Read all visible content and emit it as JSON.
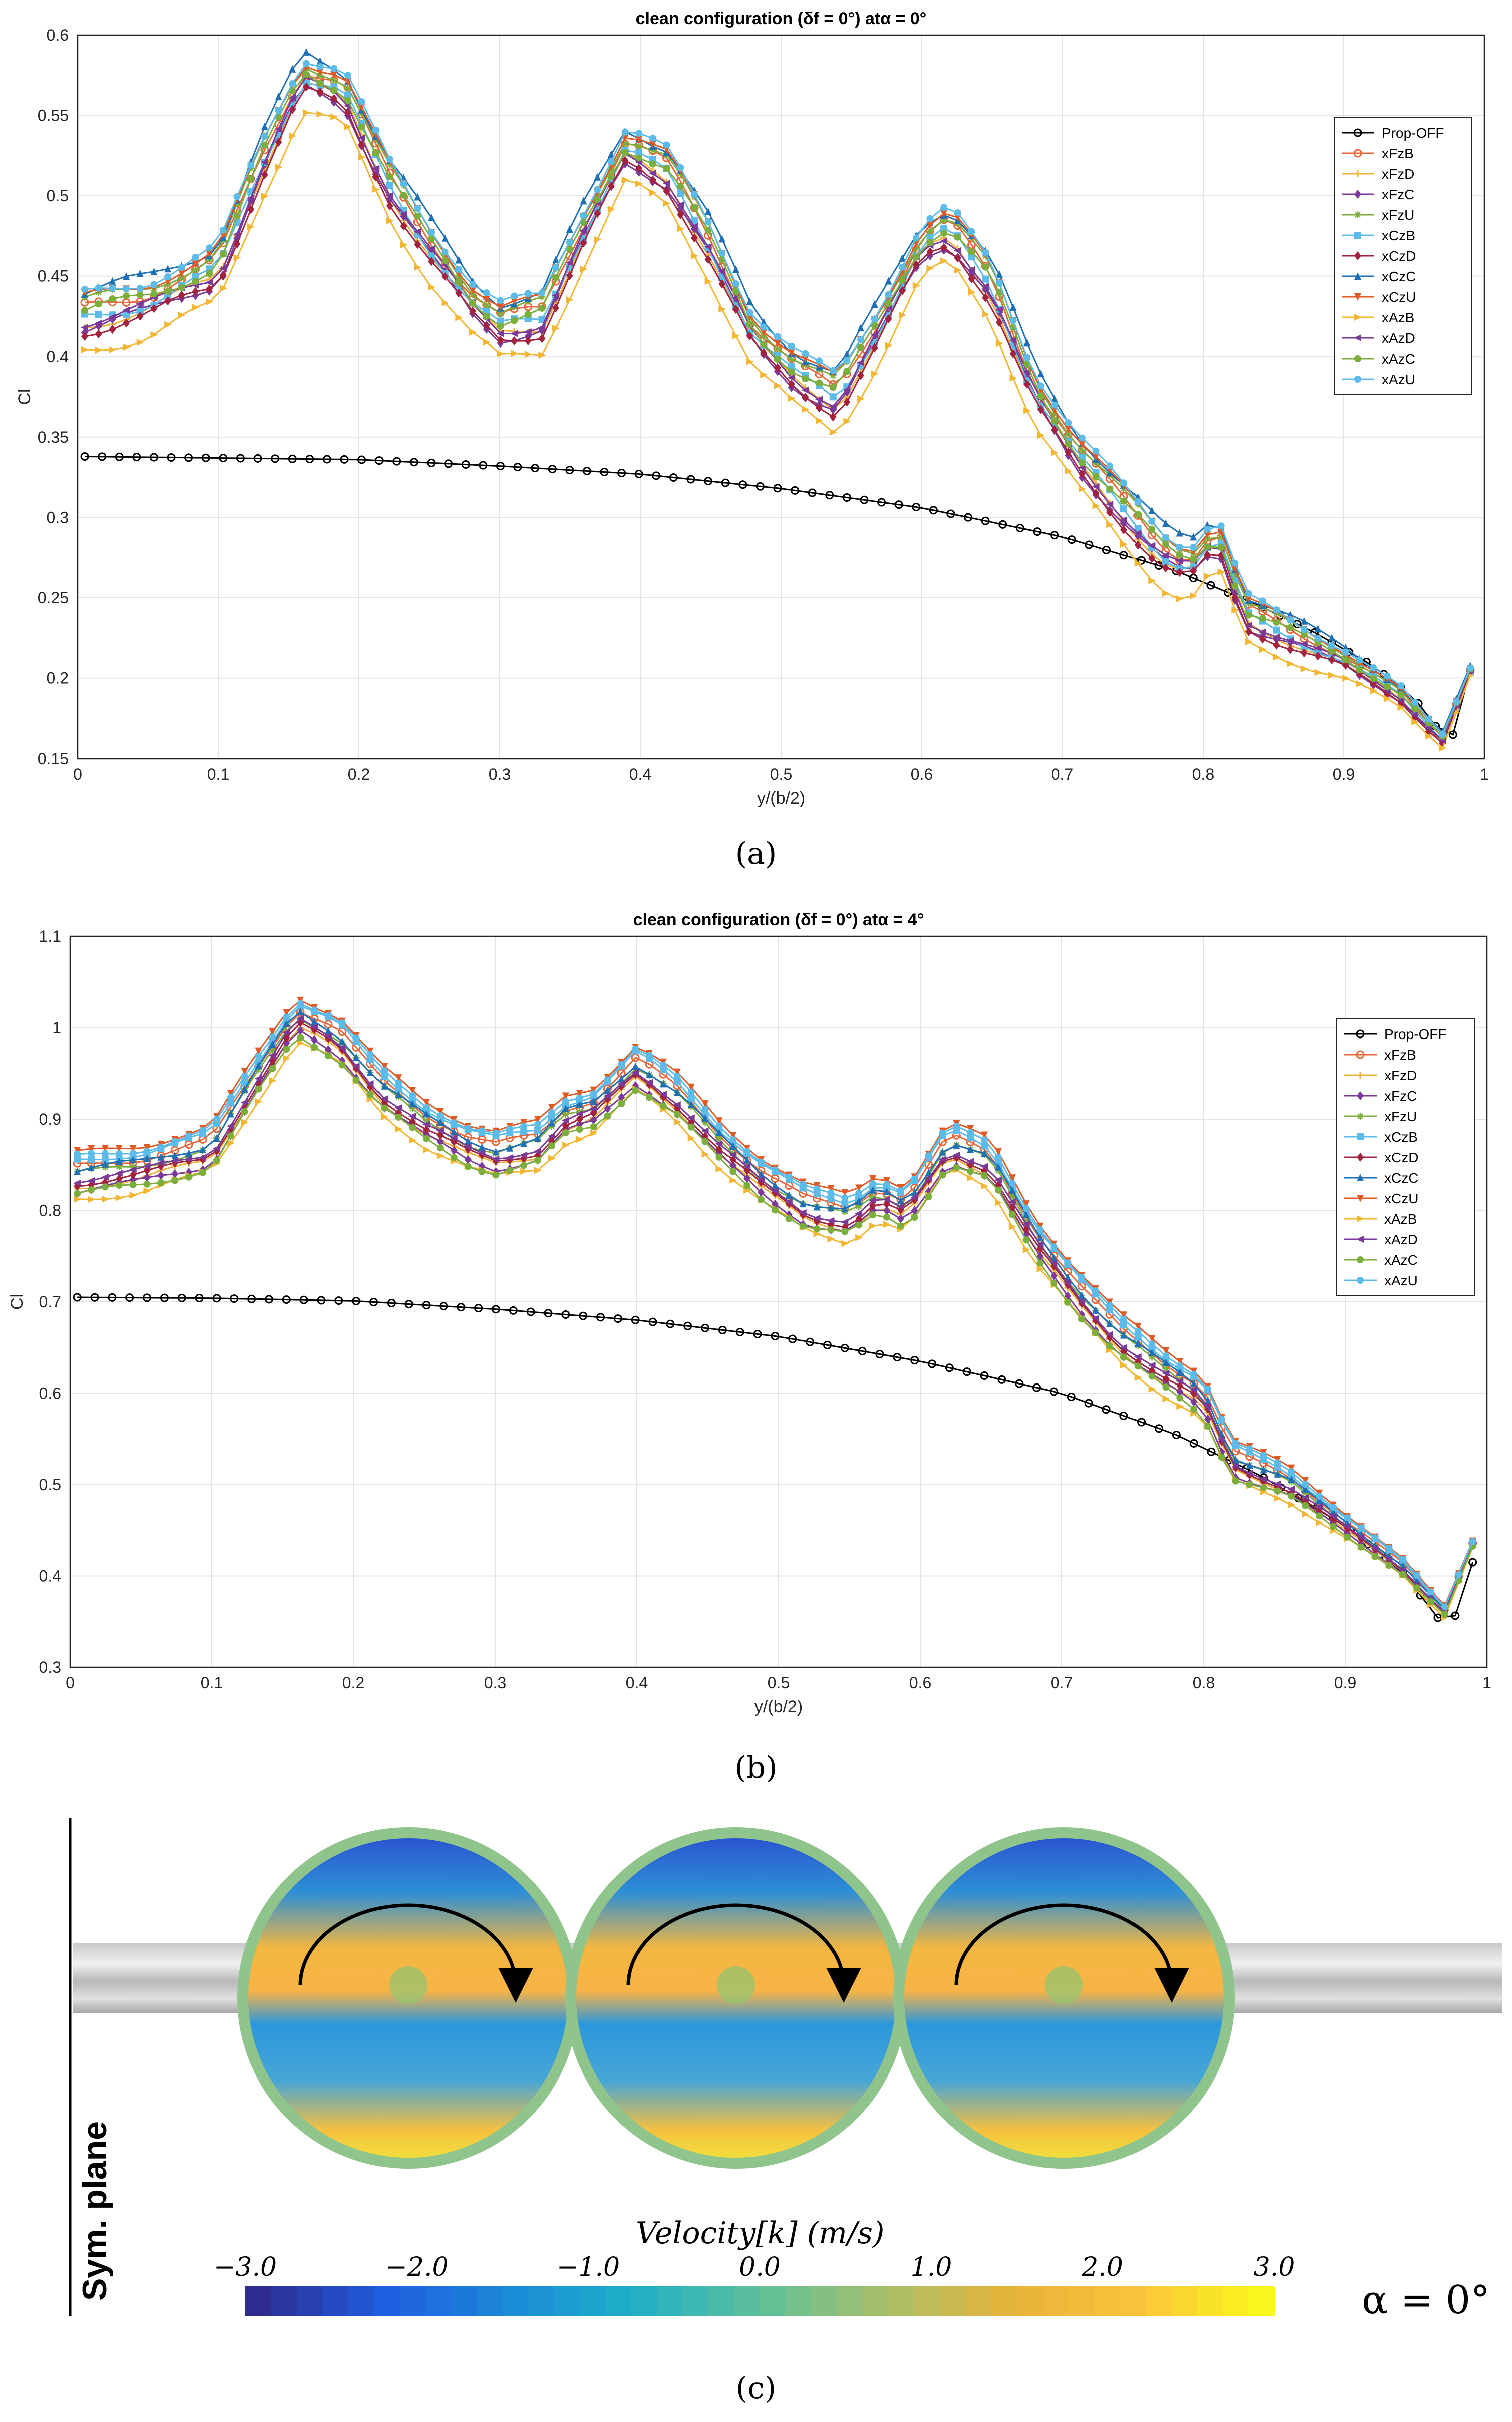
{
  "panels": {
    "a": {
      "caption": "(a)"
    },
    "b": {
      "caption": "(b)"
    },
    "c": {
      "caption": "(c)",
      "colorbar_title": "Velocity[k] (m/s)",
      "colorbar_ticks": [
        "−3.0",
        "−2.0",
        "−1.0",
        "0.0",
        "1.0",
        "2.0",
        "3.0"
      ],
      "sym_plane_label": "Sym. plane",
      "alpha_label": "α = 0°",
      "colorbar_colors": [
        "#2e2d8f",
        "#1f5ce0",
        "#1b8ad8",
        "#1fb0c8",
        "#5fc09a",
        "#a8bf6a",
        "#e6b33a",
        "#fbc23b",
        "#f9f81c"
      ]
    }
  },
  "chart_data": [
    {
      "type": "line",
      "title": "clean configuration (δf = 0°) atα = 0°",
      "xlabel": "y/(b/2)",
      "ylabel": "Cl",
      "xlim": [
        0,
        1
      ],
      "ylim": [
        0.15,
        0.6
      ],
      "xticks": [
        "0",
        "0.1",
        "0.2",
        "0.3",
        "0.4",
        "0.5",
        "0.6",
        "0.7",
        "0.8",
        "0.9",
        "1"
      ],
      "yticks": [
        "0.15",
        "0.2",
        "0.25",
        "0.3",
        "0.35",
        "0.4",
        "0.45",
        "0.5",
        "0.55",
        "0.6"
      ],
      "legend_position": "top-right",
      "grid": true,
      "baseline": {
        "name": "Prop-OFF",
        "x": [
          0.0,
          0.1,
          0.2,
          0.3,
          0.4,
          0.5,
          0.6,
          0.7,
          0.78,
          0.84,
          0.88,
          0.92,
          0.95,
          0.97,
          0.98,
          0.99
        ],
        "y": [
          0.338,
          0.337,
          0.336,
          0.332,
          0.327,
          0.318,
          0.306,
          0.288,
          0.267,
          0.245,
          0.228,
          0.208,
          0.188,
          0.165,
          0.165,
          0.205
        ]
      },
      "prop_x": [
        0.0,
        0.05,
        0.1,
        0.13,
        0.16,
        0.19,
        0.22,
        0.25,
        0.28,
        0.3,
        0.33,
        0.36,
        0.39,
        0.42,
        0.45,
        0.48,
        0.51,
        0.54,
        0.57,
        0.6,
        0.62,
        0.65,
        0.68,
        0.71,
        0.74,
        0.77,
        0.79,
        0.81,
        0.83,
        0.86,
        0.9,
        0.94,
        0.97,
        0.99
      ],
      "prop_base": [
        0.425,
        0.435,
        0.455,
        0.52,
        0.575,
        0.565,
        0.51,
        0.47,
        0.435,
        0.42,
        0.425,
        0.48,
        0.53,
        0.515,
        0.47,
        0.415,
        0.39,
        0.375,
        0.42,
        0.47,
        0.48,
        0.445,
        0.38,
        0.34,
        0.31,
        0.28,
        0.27,
        0.29,
        0.24,
        0.228,
        0.212,
        0.19,
        0.162,
        0.205
      ],
      "series": [
        {
          "name": "Prop-OFF",
          "color": "#000000",
          "marker": "o",
          "offset": 0
        },
        {
          "name": "xFzB",
          "color": "#e8673a",
          "marker": "o",
          "offset": 0.004
        },
        {
          "name": "xFzD",
          "color": "#f0b13a",
          "marker": "+",
          "offset": -0.006
        },
        {
          "name": "xFzC",
          "color": "#7b3a98",
          "marker": "d",
          "offset": -0.008
        },
        {
          "name": "xFzU",
          "color": "#7cae3e",
          "marker": "*",
          "offset": 0.008
        },
        {
          "name": "xCzB",
          "color": "#5cbbe8",
          "marker": "s",
          "offset": -0.002
        },
        {
          "name": "xCzD",
          "color": "#a3233f",
          "marker": "d",
          "offset": -0.01
        },
        {
          "name": "xCzC",
          "color": "#1f6fb5",
          "marker": "^",
          "offset": 0.014
        },
        {
          "name": "xCzU",
          "color": "#e05a25",
          "marker": "v",
          "offset": 0.01
        },
        {
          "name": "xAzB",
          "color": "#f2b632",
          "marker": ">",
          "offset": -0.022
        },
        {
          "name": "xAzD",
          "color": "#7b3a98",
          "marker": "<",
          "offset": -0.004
        },
        {
          "name": "xAzC",
          "color": "#7cae3e",
          "marker": "p",
          "offset": 0.002
        },
        {
          "name": "xAzU",
          "color": "#5cbbe8",
          "marker": "h",
          "offset": 0.012
        }
      ]
    },
    {
      "type": "line",
      "title": "clean configuration (δf = 0°) atα = 4°",
      "xlabel": "y/(b/2)",
      "ylabel": "Cl",
      "xlim": [
        0,
        1
      ],
      "ylim": [
        0.3,
        1.1
      ],
      "xticks": [
        "0",
        "0.1",
        "0.2",
        "0.3",
        "0.4",
        "0.5",
        "0.6",
        "0.7",
        "0.8",
        "0.9",
        "1"
      ],
      "yticks": [
        "0.3",
        "0.4",
        "0.5",
        "0.6",
        "0.7",
        "0.8",
        "0.9",
        "1",
        "1.1"
      ],
      "legend_position": "top-right",
      "grid": true,
      "baseline": {
        "name": "Prop-OFF",
        "x": [
          0.0,
          0.1,
          0.2,
          0.3,
          0.4,
          0.5,
          0.6,
          0.7,
          0.78,
          0.84,
          0.9,
          0.94,
          0.97,
          0.98,
          0.99
        ],
        "y": [
          0.705,
          0.704,
          0.701,
          0.692,
          0.68,
          0.662,
          0.635,
          0.6,
          0.555,
          0.51,
          0.455,
          0.405,
          0.345,
          0.36,
          0.415
        ]
      },
      "prop_x": [
        0.0,
        0.05,
        0.1,
        0.13,
        0.16,
        0.19,
        0.22,
        0.25,
        0.28,
        0.3,
        0.33,
        0.35,
        0.37,
        0.4,
        0.43,
        0.46,
        0.49,
        0.52,
        0.55,
        0.57,
        0.59,
        0.62,
        0.65,
        0.68,
        0.71,
        0.74,
        0.77,
        0.8,
        0.82,
        0.86,
        0.9,
        0.94,
        0.97,
        0.99
      ],
      "prop_base": [
        0.835,
        0.845,
        0.865,
        0.94,
        1.01,
        0.985,
        0.93,
        0.895,
        0.87,
        0.86,
        0.87,
        0.9,
        0.91,
        0.955,
        0.92,
        0.87,
        0.83,
        0.8,
        0.79,
        0.815,
        0.8,
        0.87,
        0.85,
        0.77,
        0.71,
        0.66,
        0.625,
        0.595,
        0.525,
        0.5,
        0.455,
        0.41,
        0.36,
        0.435
      ],
      "series": [
        {
          "name": "Prop-OFF",
          "color": "#000000",
          "marker": "o",
          "offset": 0
        },
        {
          "name": "xFzB",
          "color": "#e8673a",
          "marker": "o",
          "offset": 0.012
        },
        {
          "name": "xFzD",
          "color": "#f0b13a",
          "marker": "+",
          "offset": -0.01
        },
        {
          "name": "xFzC",
          "color": "#7b3a98",
          "marker": "d",
          "offset": -0.014
        },
        {
          "name": "xFzU",
          "color": "#7cae3e",
          "marker": "*",
          "offset": 0.004
        },
        {
          "name": "xCzB",
          "color": "#5cbbe8",
          "marker": "s",
          "offset": 0.018
        },
        {
          "name": "xCzD",
          "color": "#a3233f",
          "marker": "d",
          "offset": -0.006
        },
        {
          "name": "xCzC",
          "color": "#1f6fb5",
          "marker": "^",
          "offset": 0.008
        },
        {
          "name": "xCzU",
          "color": "#e05a25",
          "marker": "v",
          "offset": 0.026
        },
        {
          "name": "xAzB",
          "color": "#f2b632",
          "marker": ">",
          "offset": -0.024
        },
        {
          "name": "xAzD",
          "color": "#7b3a98",
          "marker": "<",
          "offset": -0.002
        },
        {
          "name": "xAzC",
          "color": "#7cae3e",
          "marker": "p",
          "offset": -0.018
        },
        {
          "name": "xAzU",
          "color": "#5cbbe8",
          "marker": "h",
          "offset": 0.022
        }
      ]
    }
  ]
}
